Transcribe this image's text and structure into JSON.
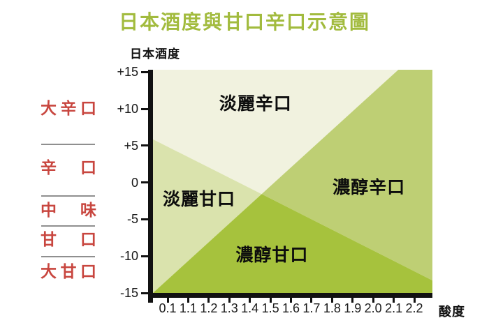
{
  "title": {
    "text": "日本酒度與甘口辛口示意圖"
  },
  "colors": {
    "title_green": "#a2bb3e",
    "label_red": "#c8463f",
    "axis_black": "#111111",
    "divider_gray": "#8f8f8f"
  },
  "left_scale": {
    "items": [
      {
        "id": "dai-karakuchi",
        "label": "大辛口"
      },
      {
        "id": "karakuchi",
        "label": "辛口"
      },
      {
        "id": "chuumi",
        "label": "中味"
      },
      {
        "id": "amakuchi",
        "label": "甘口"
      },
      {
        "id": "dai-amakuchi",
        "label": "大甘口"
      }
    ]
  },
  "chart_data": {
    "type": "area",
    "title": "日本酒度與甘口辛口示意圖",
    "xlabel": "酸度",
    "ylabel": "日本酒度",
    "ylim": [
      -15,
      15
    ],
    "y_ticks": [
      "+15",
      "+10",
      "+5",
      "0",
      "-5",
      "-10",
      "-15"
    ],
    "x_ticks": [
      "0.1",
      "1.1",
      "1.2",
      "1.3",
      "1.4",
      "1.5",
      "1.6",
      "1.7",
      "1.8",
      "1.9",
      "2.0",
      "2.1",
      "2.2"
    ],
    "grid": false,
    "legend": "none",
    "regions": [
      {
        "id": "tanrei-karakuchi",
        "name": "淡麗辛口",
        "color": "#f1f2df",
        "polygon": [
          [
            0,
            0
          ],
          [
            0.878,
            0
          ],
          [
            0.389,
            0.557
          ],
          [
            0,
            0.312
          ]
        ],
        "label_pos": [
          0.367,
          0.146
        ]
      },
      {
        "id": "noujun-karakuchi",
        "name": "濃醇辛口",
        "color": "#becf74",
        "polygon": [
          [
            0.878,
            0
          ],
          [
            1,
            0
          ],
          [
            1,
            0.944
          ],
          [
            0.389,
            0.557
          ]
        ],
        "label_pos": [
          0.773,
          0.523
        ]
      },
      {
        "id": "tanrei-amakuchi",
        "name": "淡麗甘口",
        "color": "#dae3ad",
        "polygon": [
          [
            0,
            0.312
          ],
          [
            0.389,
            0.557
          ],
          [
            0,
            1
          ]
        ],
        "label_pos": [
          0.165,
          0.576
        ]
      },
      {
        "id": "noujun-amakuchi",
        "name": "濃醇甘口",
        "color": "#a6c23d",
        "polygon": [
          [
            0,
            1
          ],
          [
            0.389,
            0.557
          ],
          [
            1,
            0.944
          ],
          [
            1,
            1
          ]
        ],
        "label_pos": [
          0.426,
          0.825
        ]
      }
    ]
  }
}
